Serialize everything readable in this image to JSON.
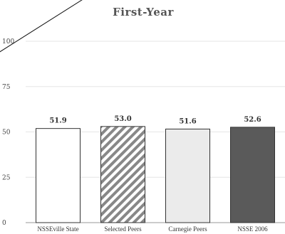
{
  "chart_data": {
    "type": "bar",
    "title": "First-Year",
    "categories": [
      "NSSEville State",
      "Selected Peers",
      "Carnegie Peers",
      "NSSE 2006"
    ],
    "values": [
      51.9,
      53.0,
      51.6,
      52.6
    ],
    "value_labels": [
      "51.9",
      "53.0",
      "51.6",
      "52.6"
    ],
    "yticks": [
      0,
      25,
      50,
      75,
      100
    ],
    "ytick_labels": [
      "0",
      "25",
      "50",
      "75",
      "100"
    ],
    "ylim": [
      0,
      100
    ],
    "xlabel": "",
    "ylabel": "",
    "grid": true,
    "bar_fills": [
      "#ffffff",
      "hatch",
      "#ebebeb",
      "#5a5a5a"
    ]
  }
}
